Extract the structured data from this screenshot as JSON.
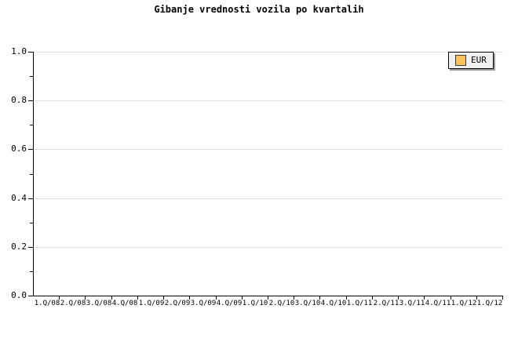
{
  "title": "Gibanje vrednosti vozila po kvartalih",
  "legend": {
    "position": "top-right",
    "items": [
      {
        "label": "EUR",
        "swatch_color": "#f9c45e"
      }
    ]
  },
  "colors": {
    "background": "#ffffff",
    "axis": "#000000",
    "grid": "#e0e0e0",
    "text": "#000000",
    "legend_fill": "#f0f0f0",
    "legend_border": "#000000",
    "legend_shadow": "#999999",
    "series_eur": "#f9c45e"
  },
  "chart_data": {
    "type": "line",
    "title": "Gibanje vrednosti vozila po kvartalih",
    "xlabel": "",
    "ylabel": "",
    "categories": [
      "1.Q/08",
      "2.Q/08",
      "3.Q/08",
      "4.Q/08",
      "1.Q/09",
      "2.Q/09",
      "3.Q/09",
      "4.Q/09",
      "1.Q/10",
      "2.Q/10",
      "3.Q/10",
      "4.Q/10",
      "1.Q/11",
      "2.Q/11",
      "3.Q/11",
      "4.Q/11",
      "1.Q/12",
      "1.Q/12"
    ],
    "series": [
      {
        "name": "EUR",
        "color": "#f9c45e",
        "values": []
      }
    ],
    "ylim": [
      0.0,
      1.0
    ],
    "y_ticks": [
      0.0,
      0.2,
      0.4,
      0.6,
      0.8,
      1.0
    ],
    "y_tick_decimals": 1,
    "y_minor_ticks_per_interval": 1,
    "grid": "horizontal",
    "grid_color": "#e0e0e0",
    "legend_position": "top-right"
  }
}
